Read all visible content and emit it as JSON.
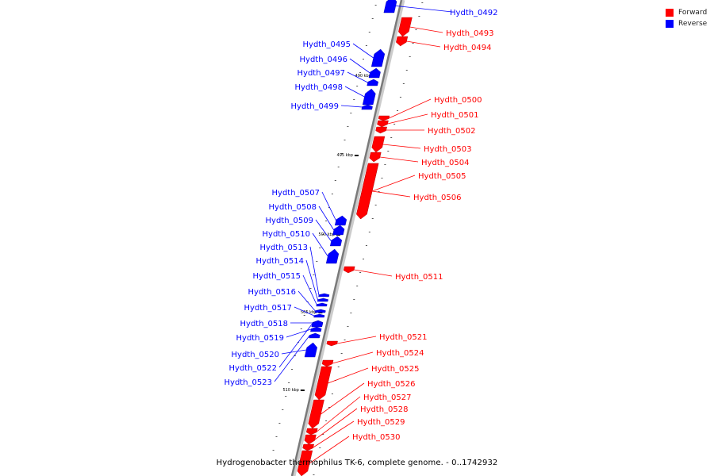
{
  "legend": {
    "forward": {
      "label": "Forward",
      "color": "#ff0000"
    },
    "reverse": {
      "label": "Reverse",
      "color": "#0000ff"
    }
  },
  "caption": "Hydrogenobacter thermophilus TK-6, complete genome. - 0..1742932",
  "scale_ticks": [
    "490 kbp",
    "495 kbp",
    "500 kbp",
    "505 kbp",
    "510 kbp"
  ],
  "genes_forward": [
    "Hydth_0493",
    "Hydth_0494",
    "Hydth_0500",
    "Hydth_0501",
    "Hydth_0502",
    "Hydth_0503",
    "Hydth_0504",
    "Hydth_0505",
    "Hydth_0506",
    "Hydth_0511",
    "Hydth_0521",
    "Hydth_0524",
    "Hydth_0525",
    "Hydth_0526",
    "Hydth_0527",
    "Hydth_0528",
    "Hydth_0529",
    "Hydth_0530"
  ],
  "genes_reverse": [
    "Hydth_0492",
    "Hydth_0495",
    "Hydth_0496",
    "Hydth_0497",
    "Hydth_0498",
    "Hydth_0499",
    "Hydth_0507",
    "Hydth_0508",
    "Hydth_0509",
    "Hydth_0510",
    "Hydth_0513",
    "Hydth_0514",
    "Hydth_0515",
    "Hydth_0516",
    "Hydth_0517",
    "Hydth_0518",
    "Hydth_0519",
    "Hydth_0520",
    "Hydth_0522",
    "Hydth_0523"
  ]
}
